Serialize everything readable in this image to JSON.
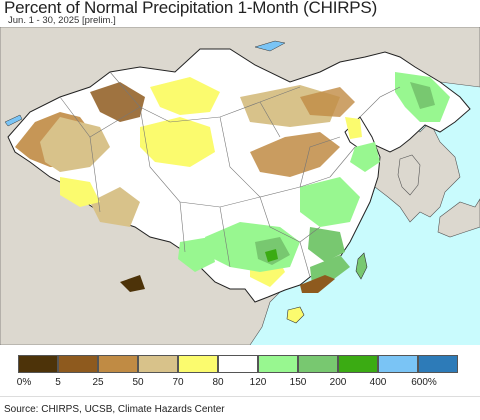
{
  "title": "Percent of Normal Precipitation 1-Month (CHIRPS)",
  "subtitle": "Jun. 1 - 30, 2025 [prelim.]",
  "source": "Source: CHIRPS, UCSB, Climate Hazards Center",
  "legend": {
    "items": [
      {
        "label": "0%",
        "color": "#4d3309"
      },
      {
        "label": "5",
        "color": "#8e5a1e"
      },
      {
        "label": "25",
        "color": "#c08b44"
      },
      {
        "label": "50",
        "color": "#d8c28a"
      },
      {
        "label": "70",
        "color": "#fbfb6e"
      },
      {
        "label": "80",
        "color": "#ffffff"
      },
      {
        "label": "120",
        "color": "#98f790"
      },
      {
        "label": "150",
        "color": "#78c870"
      },
      {
        "label": "200",
        "color": "#3bab13"
      },
      {
        "label": "400",
        "color": "#7ac4f5"
      },
      {
        "label": "600%",
        "color": "#2d7bb8"
      }
    ]
  },
  "map": {
    "ocean_color": "#c9fbfd",
    "outside_land_color": "#dcd8cf",
    "border_color": "#333333",
    "province_border_color": "#666666"
  }
}
